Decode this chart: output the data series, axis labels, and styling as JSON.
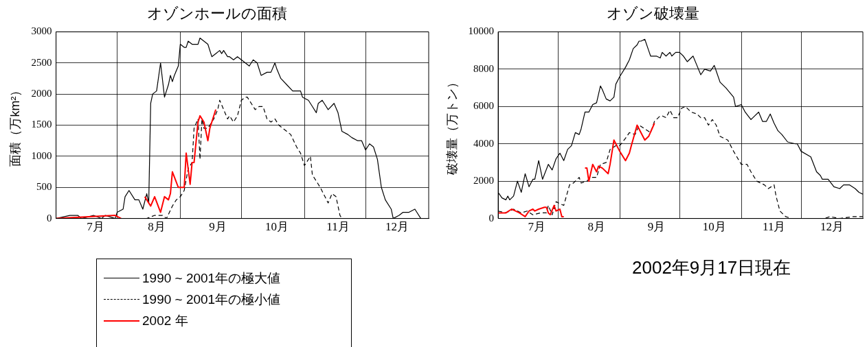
{
  "chart_data": [
    {
      "type": "line",
      "title": "オゾンホールの面積",
      "ylabel": "面積（万km²）",
      "xlim": [
        "--06-25",
        "--12-31"
      ],
      "ylim": [
        0,
        3000
      ],
      "xticks": [
        {
          "value": "--07-15",
          "label": "7月"
        },
        {
          "value": "--07-26",
          "label": null
        },
        {
          "value": "--08-15",
          "label": "8月"
        },
        {
          "value": "--08-27",
          "label": null
        },
        {
          "value": "--09-15",
          "label": "9月"
        },
        {
          "value": "--09-27",
          "label": null
        },
        {
          "value": "--10-15",
          "label": "10月"
        },
        {
          "value": "--10-29",
          "label": null
        },
        {
          "value": "--11-15",
          "label": "11月"
        },
        {
          "value": "--11-29",
          "label": null
        },
        {
          "value": "--12-15",
          "label": "12月"
        }
      ],
      "yticks": [
        0,
        500,
        1000,
        1500,
        2000,
        2500,
        3000
      ],
      "grid": true,
      "legend": "bottom",
      "marker": "none",
      "series": [
        {
          "name": "1990 ~ 2001年の極大値",
          "color": "#000000",
          "line_style": "solid",
          "x": [
            "--06-25",
            "--07-02",
            "--07-06",
            "--07-08",
            "--07-14",
            "--07-18",
            "--07-20",
            "--07-25",
            "--07-26",
            "--07-29",
            "--07-30",
            "--08-01",
            "--08-04",
            "--08-06",
            "--08-08",
            "--08-10",
            "--08-11",
            "--08-12",
            "--08-13",
            "--08-15",
            "--08-17",
            "--08-19",
            "--08-21",
            "--08-22",
            "--08-23",
            "--08-24",
            "--08-26",
            "--08-27",
            "--08-29",
            "--08-30",
            "--08-31",
            "--09-02",
            "--09-05",
            "--09-06",
            "--09-08",
            "--09-10",
            "--09-12",
            "--09-14",
            "--09-16",
            "--09-17",
            "--09-18",
            "--09-20",
            "--09-21",
            "--09-23",
            "--09-25",
            "--09-27",
            "--09-29",
            "--10-01",
            "--10-03",
            "--10-05",
            "--10-07",
            "--10-10",
            "--10-12",
            "--10-14",
            "--10-15",
            "--10-17",
            "--10-20",
            "--10-23",
            "--10-27",
            "--10-28",
            "--10-31",
            "--11-02",
            "--11-04",
            "--11-05",
            "--11-07",
            "--11-09",
            "--11-10",
            "--11-13",
            "--11-15",
            "--11-17",
            "--11-20",
            "--11-22",
            "--11-25",
            "--11-27",
            "--11-29",
            "--12-01",
            "--12-03",
            "--12-05",
            "--12-07",
            "--12-09",
            "--12-12",
            "--12-13",
            "--12-16",
            "--12-18",
            "--12-21",
            "--12-24",
            "--12-27",
            "--12-31"
          ],
          "values": [
            0,
            50,
            50,
            0,
            50,
            0,
            50,
            0,
            100,
            150,
            350,
            450,
            300,
            300,
            150,
            400,
            250,
            1850,
            2000,
            2050,
            2500,
            1950,
            2150,
            2300,
            2200,
            2300,
            2450,
            2800,
            2750,
            2750,
            2850,
            2800,
            2800,
            2900,
            2850,
            2800,
            2600,
            2650,
            2700,
            2650,
            2700,
            2600,
            2600,
            2550,
            2600,
            2550,
            2500,
            2450,
            2550,
            2500,
            2300,
            2350,
            2350,
            2500,
            2400,
            2250,
            2150,
            2050,
            2050,
            1950,
            1900,
            1800,
            1700,
            1850,
            1900,
            1800,
            1750,
            1850,
            1700,
            1400,
            1350,
            1300,
            1250,
            1250,
            1100,
            1200,
            1150,
            950,
            500,
            300,
            150,
            0,
            50,
            100,
            100,
            150,
            0,
            0
          ]
        },
        {
          "name": "1990 ~ 2001年の極小値",
          "color": "#000000",
          "line_style": "dashed",
          "x": [
            "--06-25",
            "--08-10",
            "--08-14",
            "--08-18",
            "--08-20",
            "--08-23",
            "--08-25",
            "--08-27",
            "--08-29",
            "--08-31",
            "--09-02",
            "--09-03",
            "--09-05",
            "--09-06",
            "--09-07",
            "--09-08",
            "--09-10",
            "--09-13",
            "--09-15",
            "--09-16",
            "--09-18",
            "--09-20",
            "--09-21",
            "--09-23",
            "--09-25",
            "--09-27",
            "--09-29",
            "--09-30",
            "--10-02",
            "--10-04",
            "--10-06",
            "--10-08",
            "--10-10",
            "--10-12",
            "--10-14",
            "--10-16",
            "--10-20",
            "--10-22",
            "--10-25",
            "--10-27",
            "--10-29",
            "--11-01",
            "--11-02",
            "--11-06",
            "--11-10",
            "--11-12",
            "--11-14",
            "--11-16",
            "--11-17",
            "--12-31"
          ],
          "values": [
            0,
            0,
            50,
            50,
            0,
            200,
            300,
            350,
            450,
            800,
            900,
            1450,
            1600,
            950,
            1600,
            1450,
            1450,
            1600,
            1750,
            1900,
            1750,
            1600,
            1650,
            1550,
            1650,
            1900,
            1950,
            1950,
            1850,
            1750,
            1800,
            1800,
            1600,
            1550,
            1600,
            1500,
            1400,
            1350,
            1150,
            1050,
            850,
            1000,
            700,
            500,
            250,
            400,
            350,
            50,
            0,
            0
          ]
        },
        {
          "name": "2002 年",
          "color": "#ff0000",
          "line_style": "solid",
          "x": [
            "--06-25",
            "--07-25",
            "--07-28",
            "--08-02",
            "--08-09",
            "--08-12",
            "--08-14",
            "--08-17",
            "--08-19",
            "--08-21",
            "--08-22",
            "--08-23",
            "--08-26",
            "--08-29",
            "--08-30",
            "--09-01",
            "--09-02",
            "--09-03",
            "--09-05",
            "--09-06",
            "--09-08",
            "--09-10",
            "--09-11",
            "--09-14"
          ],
          "values": [
            0,
            50,
            0,
            null,
            350,
            200,
            350,
            100,
            350,
            300,
            400,
            750,
            500,
            500,
            1050,
            550,
            900,
            900,
            1550,
            1650,
            1550,
            1250,
            1450,
            1750
          ]
        }
      ]
    },
    {
      "type": "line",
      "title": "オゾン破壊量",
      "ylabel": "破壊量（万トン）",
      "xlim": [
        "--06-25",
        "--12-31"
      ],
      "ylim": [
        0,
        10000
      ],
      "xticks": [
        {
          "value": "--07-15",
          "label": "7月"
        },
        {
          "value": "--07-26",
          "label": null
        },
        {
          "value": "--08-15",
          "label": "8月"
        },
        {
          "value": "--08-27",
          "label": null
        },
        {
          "value": "--09-15",
          "label": "9月"
        },
        {
          "value": "--09-27",
          "label": null
        },
        {
          "value": "--10-15",
          "label": "10月"
        },
        {
          "value": "--10-29",
          "label": null
        },
        {
          "value": "--11-15",
          "label": "11月"
        },
        {
          "value": "--11-29",
          "label": null
        },
        {
          "value": "--12-15",
          "label": "12月"
        }
      ],
      "yticks": [
        0,
        2000,
        4000,
        6000,
        8000,
        10000
      ],
      "grid": true,
      "marker": "none",
      "annotations": [
        "2002年9月17日現在"
      ],
      "series": [
        {
          "color": "#000000",
          "line_style": "solid",
          "x": [
            "--06-25",
            "--06-27",
            "--06-29",
            "--06-30",
            "--07-01",
            "--07-03",
            "--07-05",
            "--07-07",
            "--07-09",
            "--07-11",
            "--07-13",
            "--07-14",
            "--07-16",
            "--07-18",
            "--07-21",
            "--07-23",
            "--07-25",
            "--07-27",
            "--07-29",
            "--07-31",
            "--08-02",
            "--08-04",
            "--08-06",
            "--08-07",
            "--08-09",
            "--08-11",
            "--08-13",
            "--08-15",
            "--08-17",
            "--08-18",
            "--08-20",
            "--08-22",
            "--08-24",
            "--08-25",
            "--08-27",
            "--08-30",
            "--09-01",
            "--09-03",
            "--09-05",
            "--09-06",
            "--09-07",
            "--09-09",
            "--09-11",
            "--09-12",
            "--09-15",
            "--09-17",
            "--09-18",
            "--09-20",
            "--09-22",
            "--09-23",
            "--09-25",
            "--09-27",
            "--09-29",
            "--10-01",
            "--10-04",
            "--10-06",
            "--10-08",
            "--10-10",
            "--10-13",
            "--10-15",
            "--10-16",
            "--10-18",
            "--10-21",
            "--10-25",
            "--10-26",
            "--10-29",
            "--10-31",
            "--11-03",
            "--11-05",
            "--11-07",
            "--11-09",
            "--11-11",
            "--11-13",
            "--11-15",
            "--11-17",
            "--11-19",
            "--11-22",
            "--11-26",
            "--11-27",
            "--11-29",
            "--12-04",
            "--12-07",
            "--12-09",
            "--12-10",
            "--12-13",
            "--12-16",
            "--12-19",
            "--12-21",
            "--12-24",
            "--12-27",
            "--12-29",
            "--12-31"
          ],
          "values": [
            1400,
            1100,
            1000,
            1200,
            1000,
            1200,
            2000,
            1400,
            2400,
            1700,
            2100,
            2100,
            3100,
            2100,
            2900,
            2600,
            3200,
            3500,
            3100,
            3700,
            3900,
            4600,
            4500,
            4800,
            5700,
            5700,
            6100,
            6200,
            7100,
            6900,
            6400,
            6300,
            6500,
            7200,
            7600,
            8100,
            8500,
            9100,
            9300,
            9500,
            9500,
            9600,
            9000,
            8700,
            8700,
            8600,
            8900,
            8700,
            8900,
            8700,
            8900,
            8900,
            8700,
            8400,
            8700,
            8200,
            7700,
            8000,
            7900,
            8200,
            7900,
            7300,
            7000,
            6500,
            6000,
            6100,
            5700,
            5300,
            5500,
            5700,
            5200,
            5200,
            5600,
            5100,
            4700,
            4500,
            4100,
            4000,
            4000,
            3600,
            3300,
            2500,
            2300,
            2100,
            2100,
            1700,
            1600,
            1800,
            1800,
            1600,
            1400,
            1300
          ]
        },
        {
          "color": "#000000",
          "line_style": "dashed",
          "x": [
            "--06-25",
            "--06-29",
            "--07-03",
            "--07-07",
            "--07-10",
            "--07-13",
            "--07-17",
            "--07-20",
            "--07-21",
            "--07-23",
            "--07-25",
            "--07-27",
            "--07-29",
            "--08-01",
            "--08-03",
            "--08-06",
            "--08-07",
            "--08-10",
            "--08-12",
            "--08-15",
            "--08-17",
            "--08-20",
            "--08-22",
            "--08-25",
            "--08-27",
            "--08-30",
            "--09-01",
            "--09-04",
            "--09-06",
            "--09-09",
            "--09-12",
            "--09-14",
            "--09-17",
            "--09-18",
            "--09-20",
            "--09-22",
            "--09-24",
            "--09-26",
            "--09-28",
            "--09-30",
            "--10-03",
            "--10-06",
            "--10-08",
            "--10-10",
            "--10-12",
            "--10-14",
            "--10-16",
            "--10-18",
            "--10-22",
            "--10-25",
            "--10-29",
            "--11-01",
            "--11-03",
            "--11-06",
            "--11-10",
            "--11-12",
            "--11-15",
            "--11-16",
            "--11-18",
            "--11-21",
            "--11-24",
            "--12-01",
            "--12-11",
            "--12-14",
            "--12-19",
            "--12-26",
            "--12-31"
          ],
          "values": [
            400,
            300,
            500,
            300,
            400,
            200,
            300,
            300,
            700,
            200,
            900,
            800,
            700,
            1800,
            1900,
            2200,
            1900,
            2000,
            2200,
            2200,
            2900,
            3000,
            3700,
            3900,
            3900,
            4300,
            4600,
            4500,
            5000,
            4800,
            4600,
            5200,
            5500,
            5500,
            5400,
            5800,
            5400,
            5400,
            5900,
            6000,
            5700,
            5600,
            5400,
            5400,
            5000,
            5300,
            5000,
            4400,
            4200,
            3600,
            2900,
            2900,
            2500,
            2000,
            1800,
            1600,
            1800,
            1200,
            400,
            100,
            0,
            0,
            0,
            100,
            0,
            100,
            100
          ]
        },
        {
          "color": "#ff0000",
          "line_style": "solid",
          "x": [
            "--06-25",
            "--06-29",
            "--07-02",
            "--07-04",
            "--07-06",
            "--07-09",
            "--07-11",
            "--07-13",
            "--07-14",
            "--07-16",
            "--07-19",
            "--07-20",
            "--07-21",
            "--07-22",
            "--07-24",
            "--07-25",
            "--07-27",
            "--07-28",
            "--07-29",
            "--08-03",
            "--08-09",
            "--08-10",
            "--08-11",
            "--08-13",
            "--08-15",
            "--08-16",
            "--08-18",
            "--08-21",
            "--08-22",
            "--08-24",
            "--08-27",
            "--08-30",
            "--09-01",
            "--09-02",
            "--09-05",
            "--09-09",
            "--09-11",
            "--09-14"
          ],
          "values": [
            300,
            300,
            500,
            400,
            300,
            100,
            400,
            500,
            400,
            500,
            600,
            600,
            300,
            200,
            700,
            400,
            500,
            100,
            100,
            null,
            2700,
            2700,
            2000,
            2900,
            2500,
            2800,
            2700,
            2400,
            2900,
            4200,
            3600,
            3100,
            3500,
            3900,
            5000,
            4200,
            4400,
            5100
          ]
        }
      ]
    }
  ]
}
